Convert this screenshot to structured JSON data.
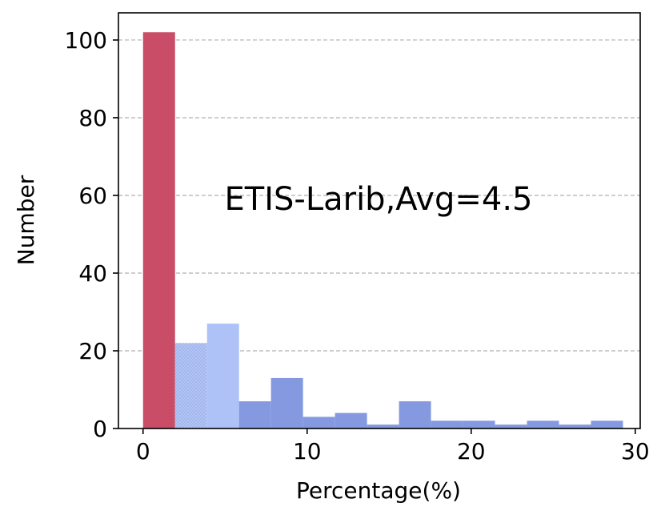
{
  "chart_data": {
    "type": "bar",
    "xlabel": "Percentage(%)",
    "ylabel": "Number",
    "annotation": "ETIS-Larib,Avg=4.5",
    "xlim": [
      -1.5,
      30.3
    ],
    "ylim": [
      0,
      107
    ],
    "x_ticks": [
      0,
      10,
      20,
      30
    ],
    "y_ticks": [
      0,
      20,
      40,
      60,
      80,
      100
    ],
    "grid": "horizontal-dashed",
    "bin_width": 1.95,
    "bins": [
      {
        "x0": 0.0,
        "value": 102,
        "color": "#c94d66"
      },
      {
        "x0": 1.95,
        "value": 22,
        "color": "#b1c4f3",
        "hatch": true
      },
      {
        "x0": 3.9,
        "value": 27,
        "color": "#aec2f7"
      },
      {
        "x0": 5.85,
        "value": 7,
        "color": "#8499e0"
      },
      {
        "x0": 7.8,
        "value": 13,
        "color": "#8499e0"
      },
      {
        "x0": 9.75,
        "value": 3,
        "color": "#8499e0"
      },
      {
        "x0": 11.7,
        "value": 4,
        "color": "#8499e0"
      },
      {
        "x0": 13.65,
        "value": 1,
        "color": "#8499e0"
      },
      {
        "x0": 15.6,
        "value": 7,
        "color": "#8499e0"
      },
      {
        "x0": 17.55,
        "value": 2,
        "color": "#8499e0"
      },
      {
        "x0": 19.5,
        "value": 2,
        "color": "#8499e0"
      },
      {
        "x0": 21.45,
        "value": 1,
        "color": "#8499e0"
      },
      {
        "x0": 23.4,
        "value": 2,
        "color": "#8499e0"
      },
      {
        "x0": 25.35,
        "value": 1,
        "color": "#8499e0"
      },
      {
        "x0": 27.3,
        "value": 2,
        "color": "#8499e0"
      }
    ]
  }
}
